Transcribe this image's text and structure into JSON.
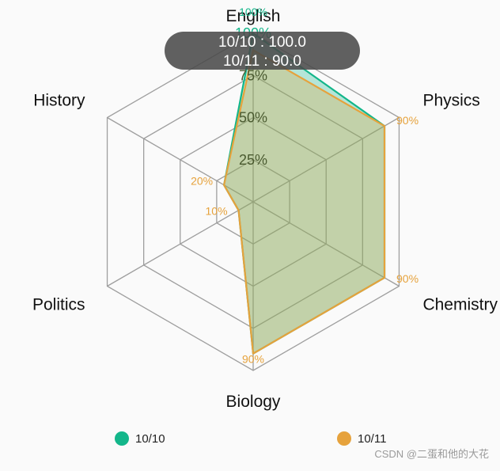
{
  "chart_data": {
    "type": "radar",
    "axes": [
      "English",
      "Physics",
      "Chemistry",
      "Biology",
      "Politics",
      "History"
    ],
    "max": 100,
    "levels": [
      25,
      50,
      75,
      100
    ],
    "level_labels": [
      "25%",
      "50%",
      "75%",
      "100%"
    ],
    "series": [
      {
        "name": "10/10",
        "values": [
          100,
          90,
          90,
          90,
          10,
          20
        ],
        "color": "#13b68a",
        "fill": "#13b68a"
      },
      {
        "name": "10/11",
        "values": [
          90,
          90,
          90,
          90,
          10,
          20
        ],
        "color": "#e6a23c",
        "fill": "#e6a23c"
      }
    ],
    "value_labels": [
      {
        "series": "10/10",
        "axis": "English",
        "text": "100%"
      },
      {
        "series": "10/11",
        "axis": "Physics",
        "text": "90%"
      },
      {
        "series": "10/11",
        "axis": "Chemistry",
        "text": "90%"
      },
      {
        "series": "10/11",
        "axis": "Biology",
        "text": "90%"
      },
      {
        "series": "10/11",
        "axis": "Politics",
        "text": "10%"
      },
      {
        "series": "10/11",
        "axis": "History",
        "text": "20%"
      }
    ],
    "tooltip": {
      "lines": [
        "10/10 : 100.0",
        "10/11 : 90.0"
      ]
    },
    "legend": {
      "placement": "bottom",
      "items": [
        {
          "label": "10/10",
          "color": "#13b68a"
        },
        {
          "label": "10/11",
          "color": "#e6a23c"
        }
      ]
    },
    "grid": true
  },
  "watermark": "CSDN @二蛋和他的大花"
}
